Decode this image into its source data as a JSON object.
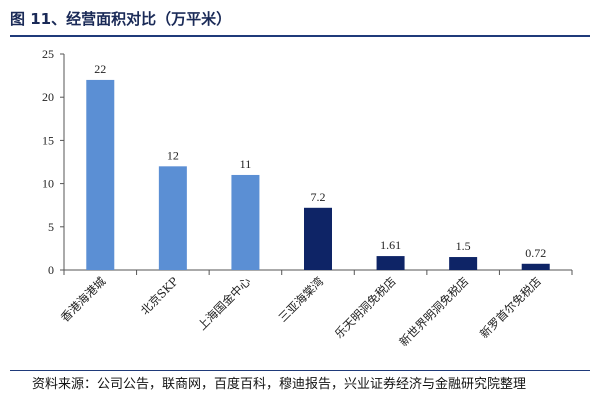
{
  "header": {
    "title": "图 11、经营面积对比（万平米）"
  },
  "footer": {
    "source": "资料来源：公司公告，联商网，百度百科，穆迪报告，兴业证券经济与金融研究院整理"
  },
  "chart_data": {
    "type": "bar",
    "title": "",
    "xlabel": "",
    "ylabel": "",
    "ylim": [
      0,
      25
    ],
    "yticks": [
      0,
      5,
      10,
      15,
      20,
      25
    ],
    "grid": false,
    "categories": [
      "香港海港城",
      "北京SKP",
      "上海国金中心",
      "三亚海棠湾",
      "乐天明洞免税店",
      "新世界明洞免税店",
      "新罗首尔免税店"
    ],
    "values": [
      22,
      12,
      11,
      7.2,
      1.61,
      1.5,
      0.72
    ],
    "data_labels": [
      "22",
      "12",
      "11",
      "7.2",
      "1.61",
      "1.5",
      "0.72"
    ],
    "bar_colors": [
      "#5b8fd4",
      "#5b8fd4",
      "#5b8fd4",
      "#0e2466",
      "#0e2466",
      "#0e2466",
      "#0e2466"
    ]
  }
}
